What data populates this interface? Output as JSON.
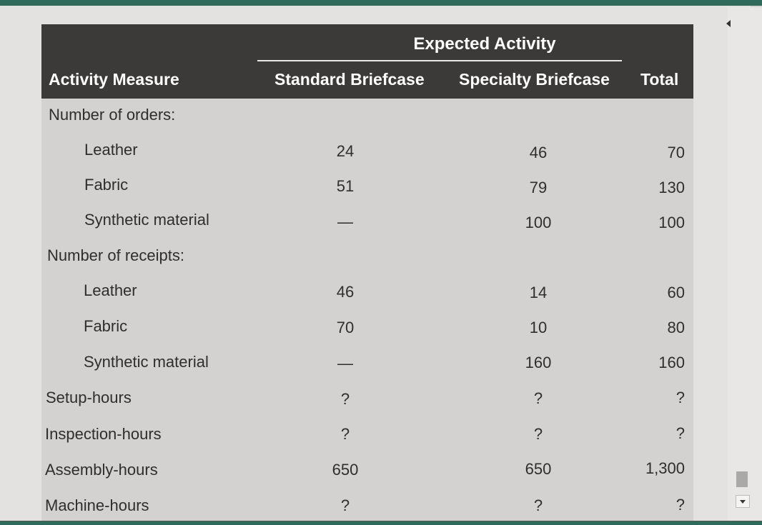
{
  "table": {
    "header": {
      "group_label": "Expected Activity",
      "activity_measure": "Activity Measure",
      "standard": "Standard Briefcase",
      "specialty": "Specialty Briefcase",
      "total": "Total"
    },
    "rows": [
      {
        "label": "Number of orders:",
        "standard": "",
        "specialty": "",
        "total": ""
      },
      {
        "label": "Leather",
        "standard": "24",
        "specialty": "46",
        "total": "70"
      },
      {
        "label": "Fabric",
        "standard": "51",
        "specialty": "79",
        "total": "130"
      },
      {
        "label": "Synthetic material",
        "standard": "—",
        "specialty": "100",
        "total": "100"
      },
      {
        "label": "Number of receipts:",
        "standard": "",
        "specialty": "",
        "total": ""
      },
      {
        "label": "Leather",
        "standard": "46",
        "specialty": "14",
        "total": "60"
      },
      {
        "label": "Fabric",
        "standard": "70",
        "specialty": "10",
        "total": "80"
      },
      {
        "label": "Synthetic material",
        "standard": "—",
        "specialty": "160",
        "total": "160"
      },
      {
        "label": "Setup-hours",
        "standard": "?",
        "specialty": "?",
        "total": "?"
      },
      {
        "label": "Inspection-hours",
        "standard": "?",
        "specialty": "?",
        "total": "?"
      },
      {
        "label": "Assembly-hours",
        "standard": "650",
        "specialty": "650",
        "total": "1,300"
      },
      {
        "label": "Machine-hours",
        "standard": "?",
        "specialty": "?",
        "total": "?"
      }
    ]
  },
  "colors": {
    "header_bg": "#3b3a39",
    "body_bg": "#d4d2d0",
    "frame_accent": "#2f6b5c"
  }
}
